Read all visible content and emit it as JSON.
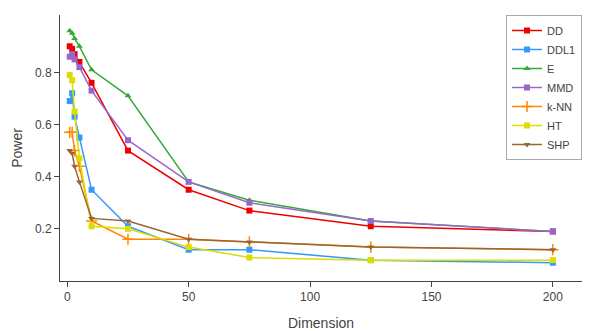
{
  "chart_data": {
    "type": "line",
    "xlabel": "Dimension",
    "ylabel": "Power",
    "x": [
      1,
      2,
      3,
      5,
      10,
      25,
      50,
      75,
      125,
      200
    ],
    "series": [
      {
        "name": "DD",
        "color": "#EE0000",
        "marker": "square",
        "values": [
          0.9,
          0.89,
          0.87,
          0.84,
          0.76,
          0.5,
          0.35,
          0.27,
          0.21,
          0.19
        ]
      },
      {
        "name": "DDL1",
        "color": "#3399FF",
        "marker": "square",
        "values": [
          0.69,
          0.72,
          0.63,
          0.55,
          0.35,
          0.21,
          0.12,
          0.12,
          0.08,
          0.07
        ]
      },
      {
        "name": "E",
        "color": "#33AA33",
        "marker": "triangle-up",
        "values": [
          0.96,
          0.95,
          0.93,
          0.9,
          0.81,
          0.71,
          0.38,
          0.31,
          0.23,
          0.19
        ]
      },
      {
        "name": "MMD",
        "color": "#9966CC",
        "marker": "square",
        "values": [
          0.86,
          0.87,
          0.85,
          0.82,
          0.73,
          0.54,
          0.38,
          0.3,
          0.23,
          0.19
        ]
      },
      {
        "name": "k-NN",
        "color": "#FF8800",
        "marker": "plus",
        "values": [
          0.57,
          0.57,
          0.5,
          0.44,
          0.23,
          0.16,
          0.16,
          0.15,
          0.13,
          0.12
        ]
      },
      {
        "name": "HT",
        "color": "#DDDD00",
        "marker": "square",
        "values": [
          0.79,
          0.77,
          0.65,
          0.47,
          0.21,
          0.2,
          0.13,
          0.09,
          0.08,
          0.08
        ]
      },
      {
        "name": "SHP",
        "color": "#996633",
        "marker": "triangle-down",
        "values": [
          0.5,
          0.49,
          0.44,
          0.38,
          0.24,
          0.23,
          0.16,
          0.15,
          0.13,
          0.12
        ]
      }
    ],
    "xlim": [
      -3,
      212
    ],
    "ylim": [
      0.0,
      1.02
    ],
    "xticks": [
      0,
      50,
      100,
      150,
      200
    ],
    "yticks": [
      0.2,
      0.4,
      0.6,
      0.8
    ],
    "grid": false,
    "legend": "upper right"
  }
}
